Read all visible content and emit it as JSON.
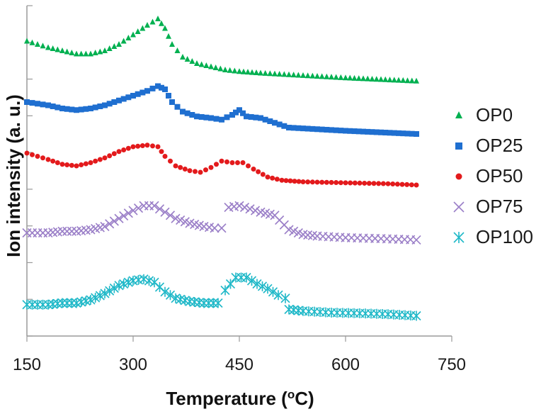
{
  "chart_data": {
    "type": "scatter",
    "xlabel": "Temperature (",
    "xlabel_sup": "o",
    "xlabel_unit": "C)",
    "ylabel": "Ion intensity (a. u.)",
    "xlim": [
      150,
      750
    ],
    "ylim": [
      0,
      10
    ],
    "x_ticks": [
      150,
      300,
      450,
      600,
      750
    ],
    "x_tick_labels": [
      "150",
      "300",
      "450",
      "600",
      "750"
    ],
    "y_tick_labels_shown": false,
    "series": [
      {
        "name": "OP0",
        "marker": "triangle",
        "color": "#00b050",
        "points": [
          [
            150,
            9.1
          ],
          [
            165,
            9.0
          ],
          [
            180,
            8.9
          ],
          [
            200,
            8.8
          ],
          [
            220,
            8.7
          ],
          [
            240,
            8.7
          ],
          [
            260,
            8.8
          ],
          [
            280,
            9.0
          ],
          [
            300,
            9.3
          ],
          [
            320,
            9.6
          ],
          [
            335,
            9.8
          ],
          [
            345,
            9.5
          ],
          [
            355,
            9.0
          ],
          [
            370,
            8.6
          ],
          [
            390,
            8.4
          ],
          [
            410,
            8.3
          ],
          [
            430,
            8.2
          ],
          [
            450,
            8.15
          ],
          [
            480,
            8.1
          ],
          [
            520,
            8.05
          ],
          [
            560,
            8.0
          ],
          [
            600,
            7.95
          ],
          [
            650,
            7.9
          ],
          [
            700,
            7.85
          ]
        ]
      },
      {
        "name": "OP25",
        "marker": "square",
        "color": "#1f6fd0",
        "points": [
          [
            150,
            7.2
          ],
          [
            165,
            7.15
          ],
          [
            180,
            7.1
          ],
          [
            200,
            7.0
          ],
          [
            220,
            6.95
          ],
          [
            240,
            7.0
          ],
          [
            260,
            7.1
          ],
          [
            280,
            7.25
          ],
          [
            300,
            7.4
          ],
          [
            320,
            7.55
          ],
          [
            335,
            7.7
          ],
          [
            345,
            7.6
          ],
          [
            355,
            7.2
          ],
          [
            370,
            6.9
          ],
          [
            390,
            6.75
          ],
          [
            410,
            6.7
          ],
          [
            425,
            6.65
          ],
          [
            440,
            6.8
          ],
          [
            450,
            6.95
          ],
          [
            460,
            6.75
          ],
          [
            480,
            6.7
          ],
          [
            500,
            6.55
          ],
          [
            520,
            6.4
          ],
          [
            560,
            6.35
          ],
          [
            600,
            6.3
          ],
          [
            650,
            6.25
          ],
          [
            700,
            6.2
          ]
        ]
      },
      {
        "name": "OP50",
        "marker": "circle",
        "color": "#e31a1c",
        "points": [
          [
            150,
            5.6
          ],
          [
            165,
            5.5
          ],
          [
            180,
            5.4
          ],
          [
            200,
            5.25
          ],
          [
            220,
            5.2
          ],
          [
            240,
            5.3
          ],
          [
            260,
            5.45
          ],
          [
            280,
            5.65
          ],
          [
            300,
            5.8
          ],
          [
            320,
            5.85
          ],
          [
            335,
            5.8
          ],
          [
            345,
            5.5
          ],
          [
            360,
            5.2
          ],
          [
            380,
            5.05
          ],
          [
            395,
            5.0
          ],
          [
            410,
            5.15
          ],
          [
            425,
            5.35
          ],
          [
            440,
            5.3
          ],
          [
            455,
            5.3
          ],
          [
            470,
            5.1
          ],
          [
            490,
            4.85
          ],
          [
            510,
            4.75
          ],
          [
            540,
            4.7
          ],
          [
            580,
            4.68
          ],
          [
            620,
            4.66
          ],
          [
            660,
            4.64
          ],
          [
            700,
            4.6
          ]
        ]
      },
      {
        "name": "OP75",
        "marker": "x",
        "color": "#9b7fc8",
        "points": [
          [
            150,
            3.1
          ],
          [
            165,
            3.1
          ],
          [
            180,
            3.1
          ],
          [
            200,
            3.15
          ],
          [
            220,
            3.15
          ],
          [
            240,
            3.2
          ],
          [
            260,
            3.3
          ],
          [
            280,
            3.55
          ],
          [
            300,
            3.8
          ],
          [
            315,
            3.95
          ],
          [
            330,
            3.95
          ],
          [
            345,
            3.75
          ],
          [
            360,
            3.55
          ],
          [
            380,
            3.4
          ],
          [
            400,
            3.3
          ],
          [
            415,
            3.25
          ],
          [
            425,
            3.25
          ],
          [
            435,
            3.9
          ],
          [
            450,
            3.95
          ],
          [
            465,
            3.85
          ],
          [
            480,
            3.75
          ],
          [
            500,
            3.65
          ],
          [
            520,
            3.2
          ],
          [
            540,
            3.05
          ],
          [
            560,
            3.0
          ],
          [
            600,
            2.95
          ],
          [
            650,
            2.92
          ],
          [
            700,
            2.88
          ]
        ]
      },
      {
        "name": "OP100",
        "marker": "asterisk",
        "color": "#1fb8c8",
        "points": [
          [
            150,
            0.85
          ],
          [
            165,
            0.85
          ],
          [
            180,
            0.85
          ],
          [
            200,
            0.9
          ],
          [
            220,
            0.9
          ],
          [
            240,
            1.0
          ],
          [
            260,
            1.2
          ],
          [
            280,
            1.45
          ],
          [
            300,
            1.6
          ],
          [
            315,
            1.65
          ],
          [
            330,
            1.55
          ],
          [
            345,
            1.25
          ],
          [
            360,
            1.05
          ],
          [
            380,
            0.95
          ],
          [
            400,
            0.9
          ],
          [
            420,
            0.9
          ],
          [
            430,
            1.3
          ],
          [
            445,
            1.7
          ],
          [
            460,
            1.7
          ],
          [
            475,
            1.5
          ],
          [
            490,
            1.35
          ],
          [
            505,
            1.15
          ],
          [
            515,
            1.05
          ],
          [
            520,
            0.7
          ],
          [
            540,
            0.65
          ],
          [
            580,
            0.6
          ],
          [
            620,
            0.58
          ],
          [
            660,
            0.55
          ],
          [
            700,
            0.5
          ]
        ]
      }
    ],
    "legend": {
      "position": "right",
      "entries": [
        "OP0",
        "OP25",
        "OP50",
        "OP75",
        "OP100"
      ]
    }
  }
}
